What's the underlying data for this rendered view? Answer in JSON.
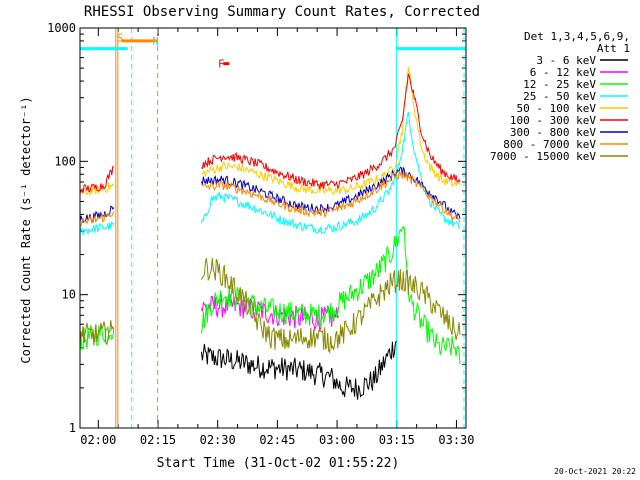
{
  "chart_data": {
    "type": "line",
    "title": "RHESSI Observing Summary Count Rates, Corrected",
    "xlabel": "Start Time (31-Oct-02 01:55:22)",
    "ylabel": "Corrected Count Rate (s⁻¹ detector⁻¹)",
    "yscale": "log",
    "ylim": [
      1,
      1000
    ],
    "xlim_minutes_after_start": [
      0,
      97
    ],
    "x_ticks": [
      {
        "label": "02:00",
        "t": 4.6
      },
      {
        "label": "02:15",
        "t": 19.6
      },
      {
        "label": "02:30",
        "t": 34.6
      },
      {
        "label": "02:45",
        "t": 49.6
      },
      {
        "label": "03:00",
        "t": 64.6
      },
      {
        "label": "03:15",
        "t": 79.6
      },
      {
        "label": "03:30",
        "t": 94.6
      }
    ],
    "y_ticks": [
      {
        "label": "1",
        "v": 1
      },
      {
        "label": "10",
        "v": 10
      },
      {
        "label": "100",
        "v": 100
      },
      {
        "label": "1000",
        "v": 1000
      }
    ],
    "grid": false,
    "legend_position": "right",
    "legend_header": [
      "Det 1,3,4,5,6,9,",
      "Att 1"
    ],
    "series": [
      {
        "name": "3 - 6 keV",
        "color": "#000000",
        "x": [
          30.5,
          38.5,
          45,
          56,
          63,
          66,
          70,
          74,
          77,
          79.5
        ],
        "y": [
          3.5,
          3.2,
          2.9,
          2.7,
          2.4,
          2.0,
          2.0,
          2.3,
          3.3,
          4.5
        ]
      },
      {
        "name": "6 - 12 keV",
        "color": "#ff00ff",
        "x": [
          30.5,
          35,
          40,
          45,
          50,
          55,
          60,
          64,
          65
        ],
        "y": [
          8,
          8.2,
          8.2,
          7.6,
          7.0,
          6.7,
          6.6,
          6.7,
          6.9
        ]
      },
      {
        "name": "12 - 25 keV",
        "color": "#00ff00",
        "x": [
          0,
          4,
          8,
          8.5,
          30.5,
          33,
          36,
          40,
          45,
          50,
          55,
          60,
          63,
          66,
          70,
          74,
          78,
          80,
          81.5,
          82,
          83,
          86,
          88,
          90,
          92,
          94.5,
          95.5
        ],
        "y": [
          4.5,
          5,
          5.5,
          5.5,
          6,
          8.5,
          10,
          9.5,
          8,
          7.5,
          7.2,
          7,
          7.5,
          9,
          11,
          14,
          20,
          27,
          35,
          15,
          9,
          6,
          5,
          4,
          4,
          4,
          3
        ]
      },
      {
        "name": "25 - 50 keV",
        "color": "#00ffff",
        "x": [
          0,
          3,
          6,
          8.5,
          30.5,
          31.5,
          33,
          35,
          38,
          42,
          46,
          50,
          55,
          60,
          64,
          70,
          74,
          78,
          80,
          81.5,
          82.5,
          84,
          86,
          88,
          91,
          95.5
        ],
        "y": [
          30,
          31,
          32,
          33,
          34,
          38,
          52,
          55,
          52,
          47,
          42,
          37,
          33,
          31,
          32,
          36,
          44,
          62,
          90,
          150,
          230,
          120,
          70,
          50,
          38,
          32
        ]
      },
      {
        "name": "50 - 100 keV",
        "color": "#ffcc00",
        "x": [
          0,
          3,
          6,
          8.5,
          30.5,
          33,
          36,
          40,
          45,
          50,
          55,
          60,
          64,
          68,
          72,
          76,
          79,
          81,
          82.5,
          84,
          86,
          88,
          91,
          95.5
        ],
        "y": [
          58,
          60,
          62,
          66,
          80,
          86,
          92,
          90,
          80,
          71,
          63,
          60,
          60,
          62,
          68,
          76,
          90,
          170,
          530,
          250,
          120,
          90,
          72,
          66
        ]
      },
      {
        "name": "100 - 300 keV",
        "color": "#ff0000",
        "x": [
          0,
          3,
          6,
          8.5,
          30.5,
          33,
          36,
          40,
          45,
          50,
          55,
          60,
          64,
          68,
          72,
          76,
          79,
          81,
          82.5,
          84,
          86,
          88,
          91,
          95.5
        ],
        "y": [
          62,
          63,
          66,
          90,
          95,
          102,
          110,
          106,
          95,
          82,
          72,
          67,
          67,
          72,
          82,
          100,
          125,
          200,
          450,
          300,
          160,
          110,
          84,
          70
        ]
      },
      {
        "name": "300 - 800 keV",
        "color": "#0000cc",
        "x": [
          0,
          3,
          6,
          8.5,
          30.5,
          33,
          36,
          40,
          45,
          50,
          55,
          60,
          64,
          68,
          72,
          76,
          79,
          80.5,
          82,
          84,
          87,
          90,
          93,
          95.5
        ],
        "y": [
          37,
          38,
          40,
          45,
          72,
          72,
          73,
          68,
          60,
          52,
          46,
          44,
          46,
          52,
          60,
          70,
          82,
          85,
          82,
          75,
          62,
          52,
          42,
          37
        ]
      },
      {
        "name": "800 - 7000 keV",
        "color": "#ff8800",
        "x": [
          0,
          3,
          6,
          8.5,
          30.5,
          33,
          36,
          40,
          45,
          50,
          55,
          60,
          64,
          68,
          72,
          76,
          79,
          80.5,
          82,
          84,
          87,
          90,
          93,
          95.5
        ],
        "y": [
          35,
          36,
          38,
          42,
          64,
          65,
          66,
          62,
          55,
          48,
          43,
          41,
          43,
          48,
          56,
          66,
          77,
          80,
          77,
          70,
          58,
          48,
          40,
          35
        ]
      },
      {
        "name": "7000 - 15000 keV",
        "color": "#888800",
        "x": [
          0,
          4,
          8,
          8.5,
          30.5,
          32,
          35,
          38,
          42,
          45,
          48,
          52,
          56,
          60,
          63,
          66,
          70,
          74,
          78,
          80,
          82,
          85,
          88,
          91,
          94,
          95.5
        ],
        "y": [
          5,
          5,
          5.3,
          5.5,
          15,
          16,
          15,
          12,
          8.5,
          6,
          4.8,
          4.5,
          4.8,
          4.8,
          4.5,
          5,
          6.5,
          9,
          12,
          13,
          12.5,
          11,
          9,
          7,
          5.5,
          5
        ]
      }
    ],
    "annotations": [
      {
        "text": "S",
        "color": "#ff8800",
        "x": 10,
        "y": 850
      },
      {
        "text": "N",
        "color": "#00ffff",
        "x": 19,
        "y": 800
      },
      {
        "text": "F",
        "color": "#ff0000",
        "x": 35.5,
        "y": 540
      }
    ],
    "time_bars": [
      {
        "name": "night",
        "color": "#00ffff",
        "x_start": 0,
        "x_end": 12,
        "y": 700
      },
      {
        "name": "night",
        "color": "#00ffff",
        "x_start": 79.5,
        "x_end": 97,
        "y": 700
      },
      {
        "name": "saa",
        "color": "#ff8800",
        "x_start": 10.5,
        "x_end": 19.5,
        "y": 800
      },
      {
        "name": "flare",
        "color": "#ff0000",
        "x_start": 36,
        "x_end": 37.5,
        "y": 540
      }
    ],
    "vlines": [
      {
        "x": 0,
        "color": "#00ffff",
        "style": "solid"
      },
      {
        "x": 13,
        "color": "#00ffff",
        "style": "dashed"
      },
      {
        "x": 79.5,
        "color": "#00ffff",
        "style": "solid"
      },
      {
        "x": 96.5,
        "color": "#00ffff",
        "style": "dashed"
      },
      {
        "x": 9,
        "color": "#ff8800",
        "style": "solid"
      },
      {
        "x": 9.5,
        "color": "#ff8800",
        "style": "solid"
      },
      {
        "x": 19.5,
        "color": "#ff8800",
        "style": "dashed"
      }
    ]
  },
  "footer_timestamp": "20-Oct-2021 20:22"
}
